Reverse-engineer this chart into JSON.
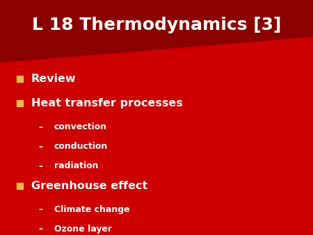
{
  "title": "L 18 Thermodynamics [3]",
  "title_color": "#FFFFFF",
  "title_fontsize": 18,
  "bg_color": "#CC0000",
  "header_dark_color": "#8B0000",
  "bullet_color": "#E8B84B",
  "text_color": "#FFFFFF",
  "bullet_items": [
    {
      "level": 1,
      "text": "Review"
    },
    {
      "level": 1,
      "text": "Heat transfer processes"
    },
    {
      "level": 2,
      "text": "convection"
    },
    {
      "level": 2,
      "text": "conduction"
    },
    {
      "level": 2,
      "text": "radiation"
    },
    {
      "level": 1,
      "text": "Greenhouse effect"
    },
    {
      "level": 2,
      "text": "Climate change"
    },
    {
      "level": 2,
      "text": "Ozone layer"
    }
  ],
  "bullet1_fontsize": 11.5,
  "bullet2_fontsize": 9,
  "figwidth": 4.5,
  "figheight": 3.38,
  "dpi": 100
}
